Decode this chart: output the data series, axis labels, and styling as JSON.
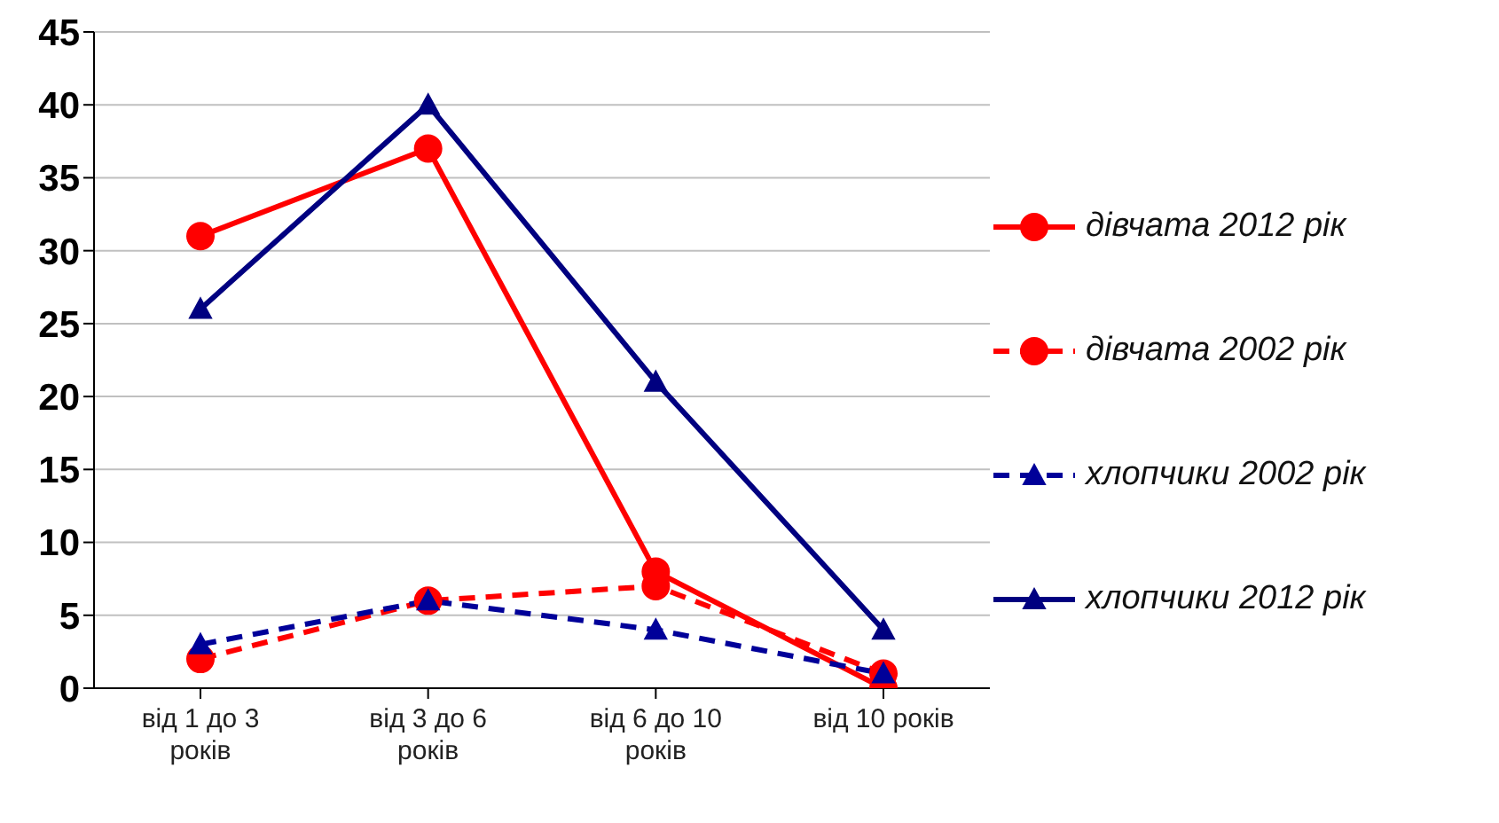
{
  "chart_data": {
    "type": "line",
    "categories": [
      "від 1 до 3 років",
      "від 3 до 6 років",
      "від 6 до 10 років",
      "від 10 років"
    ],
    "series": [
      {
        "name": "дівчата 2012 рік",
        "color": "#ff0000",
        "values": [
          31,
          37,
          8,
          0
        ],
        "marker": "circle",
        "line_style": "solid"
      },
      {
        "name": "дівчата 2002 рік",
        "color": "#ff0000",
        "values": [
          2,
          6,
          7,
          1
        ],
        "marker": "circle",
        "line_style": "dashed"
      },
      {
        "name": "хлопчики 2002 рік",
        "color": "#000099",
        "values": [
          3,
          6,
          4,
          1
        ],
        "marker": "triangle",
        "line_style": "dashed"
      },
      {
        "name": "хлопчики 2012 рік",
        "color": "#000080",
        "values": [
          26,
          40,
          21,
          4
        ],
        "marker": "triangle",
        "line_style": "solid"
      }
    ],
    "ylim": [
      0,
      45
    ],
    "yticks": [
      0,
      5,
      10,
      15,
      20,
      25,
      30,
      35,
      40,
      45
    ],
    "grid": "y",
    "legend": "right"
  }
}
